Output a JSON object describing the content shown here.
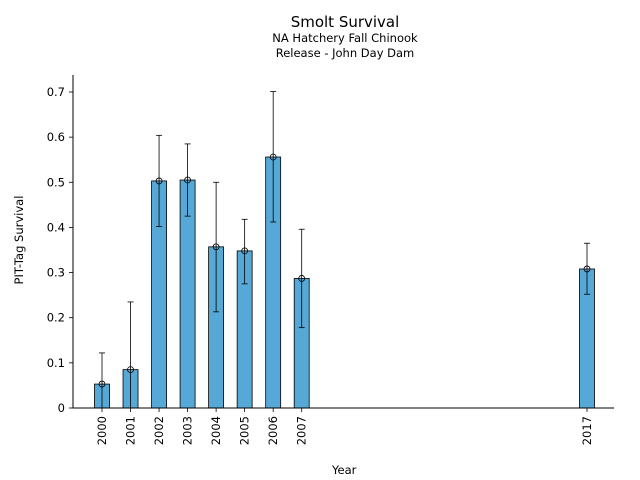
{
  "chart_data": {
    "type": "bar",
    "title": "Smolt Survival",
    "subtitle": [
      "NA Hatchery Fall Chinook",
      "Release - John Day Dam"
    ],
    "xlabel": "Year",
    "ylabel": "PIT-Tag Survival",
    "ylim": [
      0,
      0.74
    ],
    "yticks": [
      "0",
      "0.1",
      "0.2",
      "0.3",
      "0.4",
      "0.5",
      "0.6",
      "0.7"
    ],
    "grid": false,
    "bar_color": "#56a9d6",
    "categories": [
      "2000",
      "2001",
      "2002",
      "2003",
      "2004",
      "2005",
      "2006",
      "2007",
      "2017"
    ],
    "values": [
      0.053,
      0.085,
      0.503,
      0.505,
      0.357,
      0.348,
      0.556,
      0.287,
      0.308
    ],
    "error_low": [
      0.0,
      0.0,
      0.402,
      0.425,
      0.213,
      0.275,
      0.412,
      0.178,
      0.252
    ],
    "error_high": [
      0.122,
      0.235,
      0.604,
      0.585,
      0.5,
      0.418,
      0.701,
      0.396,
      0.365
    ]
  }
}
